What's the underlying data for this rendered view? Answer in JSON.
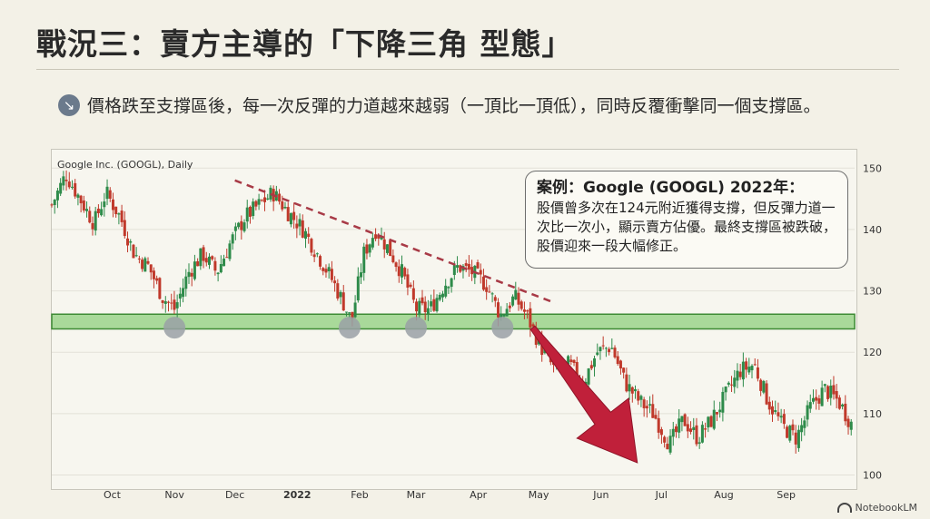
{
  "title": "戰況三：賣方主導的「下降三角 型態」",
  "bullet": {
    "icon": "arrow-down-right-icon",
    "text": "價格跌至支撐區後，每一次反彈的力道越來越弱（一頂比一頂低），同時反覆衝擊同一個支撐區。"
  },
  "callout": {
    "heading": "案例：Google (GOOGL) 2022年：",
    "body": "股價曾多次在124元附近獲得支撐，但反彈力道一次比一次小，顯示賣方佔優。最終支撐區被跌破，股價迎來一段大幅修正。"
  },
  "brand": "NotebookLM",
  "chart_data": {
    "type": "candlestick",
    "title": "Google Inc. (GOOGL), Daily",
    "x_ticks": [
      "Oct",
      "Nov",
      "Dec",
      "2022",
      "Feb",
      "Mar",
      "Apr",
      "May",
      "Jun",
      "Jul",
      "Aug",
      "Sep"
    ],
    "y_ticks": [
      100,
      110,
      120,
      130,
      140,
      150
    ],
    "ylim": [
      98,
      153
    ],
    "support_zone": [
      123.8,
      126.2
    ],
    "support_touches": [
      "2021-11-01",
      "2022-01-27",
      "2022-03-01",
      "2022-04-13"
    ],
    "descending_resistance": [
      {
        "date": "2021-12-01",
        "price": 148
      },
      {
        "date": "2022-05-03",
        "price": 128
      }
    ],
    "breakdown_arrow": {
      "from": "2022-04-28",
      "to": "2022-06-19"
    },
    "price_path": [
      {
        "date": "2021-09-01",
        "price": 144
      },
      {
        "date": "2021-09-08",
        "price": 149
      },
      {
        "date": "2021-09-15",
        "price": 145
      },
      {
        "date": "2021-09-22",
        "price": 141
      },
      {
        "date": "2021-09-28",
        "price": 146
      },
      {
        "date": "2021-10-05",
        "price": 142
      },
      {
        "date": "2021-10-12",
        "price": 136
      },
      {
        "date": "2021-10-19",
        "price": 134
      },
      {
        "date": "2021-10-26",
        "price": 129
      },
      {
        "date": "2021-11-01",
        "price": 127
      },
      {
        "date": "2021-11-08",
        "price": 133
      },
      {
        "date": "2021-11-15",
        "price": 136
      },
      {
        "date": "2021-11-22",
        "price": 133
      },
      {
        "date": "2021-11-29",
        "price": 138
      },
      {
        "date": "2021-12-06",
        "price": 142
      },
      {
        "date": "2021-12-13",
        "price": 144
      },
      {
        "date": "2021-12-20",
        "price": 146
      },
      {
        "date": "2021-12-27",
        "price": 143
      },
      {
        "date": "2022-01-04",
        "price": 140
      },
      {
        "date": "2022-01-11",
        "price": 136
      },
      {
        "date": "2022-01-18",
        "price": 132
      },
      {
        "date": "2022-01-24",
        "price": 128
      },
      {
        "date": "2022-01-28",
        "price": 125
      },
      {
        "date": "2022-02-03",
        "price": 136
      },
      {
        "date": "2022-02-09",
        "price": 140
      },
      {
        "date": "2022-02-15",
        "price": 137
      },
      {
        "date": "2022-02-22",
        "price": 133
      },
      {
        "date": "2022-03-01",
        "price": 127
      },
      {
        "date": "2022-03-08",
        "price": 127
      },
      {
        "date": "2022-03-15",
        "price": 131
      },
      {
        "date": "2022-03-22",
        "price": 134
      },
      {
        "date": "2022-03-29",
        "price": 133
      },
      {
        "date": "2022-04-05",
        "price": 131
      },
      {
        "date": "2022-04-12",
        "price": 126
      },
      {
        "date": "2022-04-19",
        "price": 129
      },
      {
        "date": "2022-04-25",
        "price": 126
      },
      {
        "date": "2022-05-02",
        "price": 121
      },
      {
        "date": "2022-05-09",
        "price": 117
      },
      {
        "date": "2022-05-16",
        "price": 118
      },
      {
        "date": "2022-05-23",
        "price": 115
      },
      {
        "date": "2022-05-30",
        "price": 120
      },
      {
        "date": "2022-06-06",
        "price": 121
      },
      {
        "date": "2022-06-13",
        "price": 115
      },
      {
        "date": "2022-06-20",
        "price": 112
      },
      {
        "date": "2022-06-27",
        "price": 110
      },
      {
        "date": "2022-07-05",
        "price": 105
      },
      {
        "date": "2022-07-12",
        "price": 109
      },
      {
        "date": "2022-07-19",
        "price": 106
      },
      {
        "date": "2022-07-26",
        "price": 109
      },
      {
        "date": "2022-08-02",
        "price": 113
      },
      {
        "date": "2022-08-09",
        "price": 117
      },
      {
        "date": "2022-08-16",
        "price": 118
      },
      {
        "date": "2022-08-23",
        "price": 112
      },
      {
        "date": "2022-08-30",
        "price": 108
      },
      {
        "date": "2022-09-06",
        "price": 106
      },
      {
        "date": "2022-09-13",
        "price": 111
      },
      {
        "date": "2022-09-20",
        "price": 114
      },
      {
        "date": "2022-09-27",
        "price": 112
      },
      {
        "date": "2022-10-04",
        "price": 108
      }
    ]
  }
}
